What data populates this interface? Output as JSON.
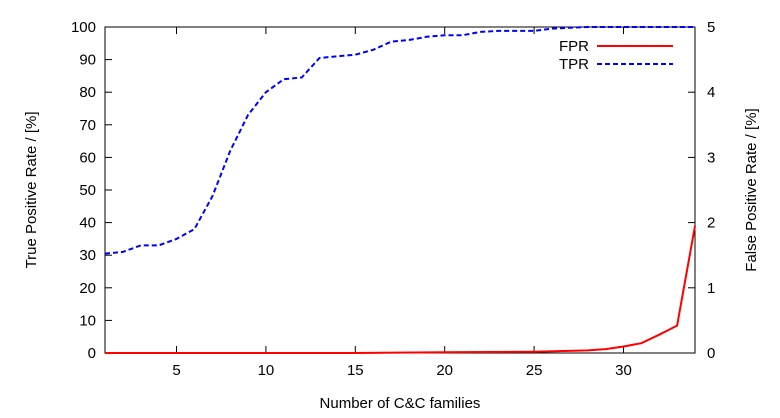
{
  "chart_data": {
    "type": "line",
    "title": "",
    "xlabel": "Number of C&C families",
    "ylabel_left": "True Positive Rate / [%]",
    "ylabel_right": "False Positive Rate / [%]",
    "xlim": [
      1,
      34
    ],
    "ylim_left": [
      0,
      100
    ],
    "ylim_right": [
      0,
      5
    ],
    "x_ticks": [
      5,
      10,
      15,
      20,
      25,
      30
    ],
    "y_ticks_left": [
      0,
      10,
      20,
      30,
      40,
      50,
      60,
      70,
      80,
      90,
      100
    ],
    "y_ticks_right": [
      0,
      1,
      2,
      3,
      4,
      5
    ],
    "grid": false,
    "legend_position": "top-right",
    "series": [
      {
        "name": "FPR",
        "axis": "right",
        "color": "#ff0000",
        "style": "solid",
        "x": [
          1,
          5,
          10,
          15,
          20,
          25,
          28,
          29,
          30,
          31,
          32,
          33,
          34
        ],
        "y": [
          0,
          0,
          0,
          0,
          0.01,
          0.02,
          0.04,
          0.06,
          0.1,
          0.15,
          0.28,
          0.42,
          1.95
        ]
      },
      {
        "name": "TPR",
        "axis": "left",
        "color": "#0000ff",
        "style": "dashed",
        "x": [
          1,
          2,
          3,
          4,
          5,
          6,
          7,
          8,
          9,
          10,
          11,
          12,
          13,
          14,
          15,
          16,
          17,
          18,
          19,
          20,
          21,
          22,
          23,
          24,
          25,
          26,
          27,
          28,
          29,
          30,
          31,
          32,
          33,
          34
        ],
        "y": [
          30.5,
          31,
          33,
          33,
          35,
          38,
          48,
          62,
          73,
          80,
          84,
          84.5,
          90.5,
          91,
          91.5,
          93,
          95.5,
          96,
          97,
          97.5,
          97.5,
          98.5,
          98.8,
          98.8,
          98.8,
          99.5,
          99.8,
          100,
          100,
          100,
          100,
          100,
          100,
          100
        ]
      }
    ]
  }
}
